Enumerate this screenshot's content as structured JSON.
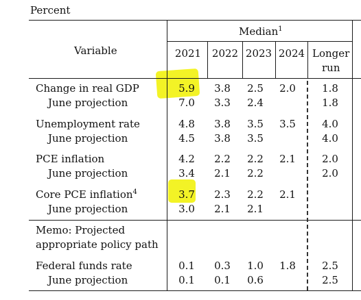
{
  "unit_label": "Percent",
  "header": {
    "median_label": "Median",
    "median_footnote": "1",
    "variable_label": "Variable",
    "years": [
      "2021",
      "2022",
      "2023",
      "2024"
    ],
    "longer_run_line1": "Longer",
    "longer_run_line2": "run"
  },
  "rows": {
    "gdp": {
      "label": "Change in real GDP",
      "values": [
        "5.9",
        "3.8",
        "2.5",
        "2.0",
        "1.8"
      ]
    },
    "gdp_june": {
      "label": "June projection",
      "values": [
        "7.0",
        "3.3",
        "2.4",
        "",
        "1.8"
      ]
    },
    "unemp": {
      "label": "Unemployment rate",
      "values": [
        "4.8",
        "3.8",
        "3.5",
        "3.5",
        "4.0"
      ]
    },
    "unemp_june": {
      "label": "June projection",
      "values": [
        "4.5",
        "3.8",
        "3.5",
        "",
        "4.0"
      ]
    },
    "pce": {
      "label": "PCE inflation",
      "values": [
        "4.2",
        "2.2",
        "2.2",
        "2.1",
        "2.0"
      ]
    },
    "pce_june": {
      "label": "June projection",
      "values": [
        "3.4",
        "2.1",
        "2.2",
        "",
        "2.0"
      ]
    },
    "core": {
      "label": "Core PCE inflation",
      "footnote": "4",
      "values": [
        "3.7",
        "2.3",
        "2.2",
        "2.1",
        ""
      ]
    },
    "core_june": {
      "label": "June projection",
      "values": [
        "3.0",
        "2.1",
        "2.1",
        "",
        ""
      ]
    },
    "fed": {
      "label": "Federal funds rate",
      "values": [
        "0.1",
        "0.3",
        "1.0",
        "1.8",
        "2.5"
      ]
    },
    "fed_june": {
      "label": "June projection",
      "values": [
        "0.1",
        "0.1",
        "0.6",
        "",
        "2.5"
      ]
    }
  },
  "memo": {
    "line1": "Memo: Projected",
    "line2": "appropriate policy path"
  },
  "highlight_color": "#f2f21a"
}
